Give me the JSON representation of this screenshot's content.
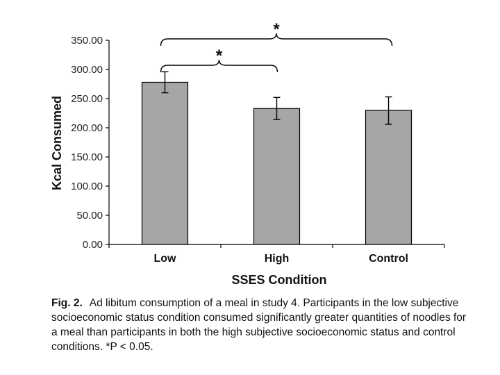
{
  "chart_data": {
    "type": "bar",
    "categories": [
      "Low",
      "High",
      "Control"
    ],
    "values": [
      278,
      233,
      230
    ],
    "error_bars": [
      {
        "low": 260,
        "high": 296
      },
      {
        "low": 214,
        "high": 252
      },
      {
        "low": 206,
        "high": 253
      }
    ],
    "bar_color": "#a6a6a6",
    "xlabel": "SSES Condition",
    "ylabel": "Kcal Consumed",
    "ylim": [
      0,
      350
    ],
    "yticks": [
      0,
      50,
      100,
      150,
      200,
      250,
      300,
      350
    ],
    "ytick_labels": [
      "0.00",
      "50.00",
      "100.00",
      "150.00",
      "200.00",
      "250.00",
      "300.00",
      "350.00"
    ],
    "grid": false,
    "annotations": [
      {
        "type": "significance-bracket",
        "from": "Low",
        "to": "Control",
        "label": "*"
      },
      {
        "type": "significance-bracket",
        "from": "Low",
        "to": "High",
        "label": "*"
      }
    ]
  },
  "caption": {
    "label": "Fig. 2.",
    "text": "Ad libitum consumption of a meal in study 4. Participants in the low subjective socioeconomic status condition consumed significantly greater quantities of noodles for a meal than participants in both the high subjective socioeconomic status and control conditions. *P < 0.05."
  }
}
